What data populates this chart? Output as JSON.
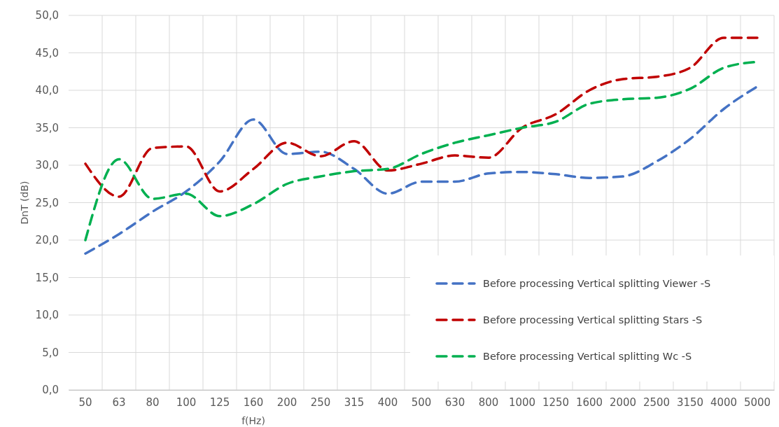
{
  "chart_data": {
    "type": "line",
    "xlabel": "f(Hz)",
    "ylabel": "DnT (dB)",
    "categories": [
      "50",
      "63",
      "80",
      "100",
      "125",
      "160",
      "200",
      "250",
      "315",
      "400",
      "500",
      "630",
      "800",
      "1000",
      "1250",
      "1600",
      "2000",
      "2500",
      "3150",
      "4000",
      "5000"
    ],
    "series": [
      {
        "name": "Before processing Vertical splitting Viewer -S",
        "color": "#4472c4",
        "line_style": "dashed",
        "values": [
          18.2,
          20.8,
          23.8,
          26.5,
          30.5,
          36.1,
          31.5,
          31.8,
          29.5,
          26.2,
          27.8,
          27.8,
          28.9,
          29.1,
          28.8,
          28.3,
          28.5,
          30.5,
          33.5,
          37.5,
          40.5
        ]
      },
      {
        "name": "Before processing Vertical splitting Stars -S",
        "color": "#c00000",
        "line_style": "dashed",
        "values": [
          30.2,
          25.8,
          32.3,
          32.5,
          26.5,
          29.5,
          33.0,
          31.2,
          33.2,
          29.3,
          30.2,
          31.3,
          31.0,
          35.0,
          36.8,
          40.0,
          41.5,
          41.8,
          43.0,
          47.0,
          47.0
        ]
      },
      {
        "name": "Before processing Vertical splitting Wc -S",
        "color": "#00b050",
        "line_style": "dashed",
        "values": [
          20.0,
          30.8,
          25.5,
          26.2,
          23.2,
          24.8,
          27.5,
          28.5,
          29.2,
          29.5,
          31.5,
          33.0,
          34.0,
          35.0,
          35.8,
          38.2,
          38.8,
          39.0,
          40.2,
          43.0,
          43.8
        ]
      }
    ],
    "ylim": [
      0,
      50
    ],
    "yticks": [
      {
        "value": 0,
        "label": "0,0"
      },
      {
        "value": 5,
        "label": "5,0"
      },
      {
        "value": 10,
        "label": "10,0"
      },
      {
        "value": 15,
        "label": "15,0"
      },
      {
        "value": 20,
        "label": "20,0"
      },
      {
        "value": 25,
        "label": "25,0"
      },
      {
        "value": 30,
        "label": "30,0"
      },
      {
        "value": 35,
        "label": "35,0"
      },
      {
        "value": 40,
        "label": "40,0"
      },
      {
        "value": 45,
        "label": "45,0"
      },
      {
        "value": 50,
        "label": "50,0"
      }
    ],
    "grid": true,
    "legend": "bottom right"
  }
}
